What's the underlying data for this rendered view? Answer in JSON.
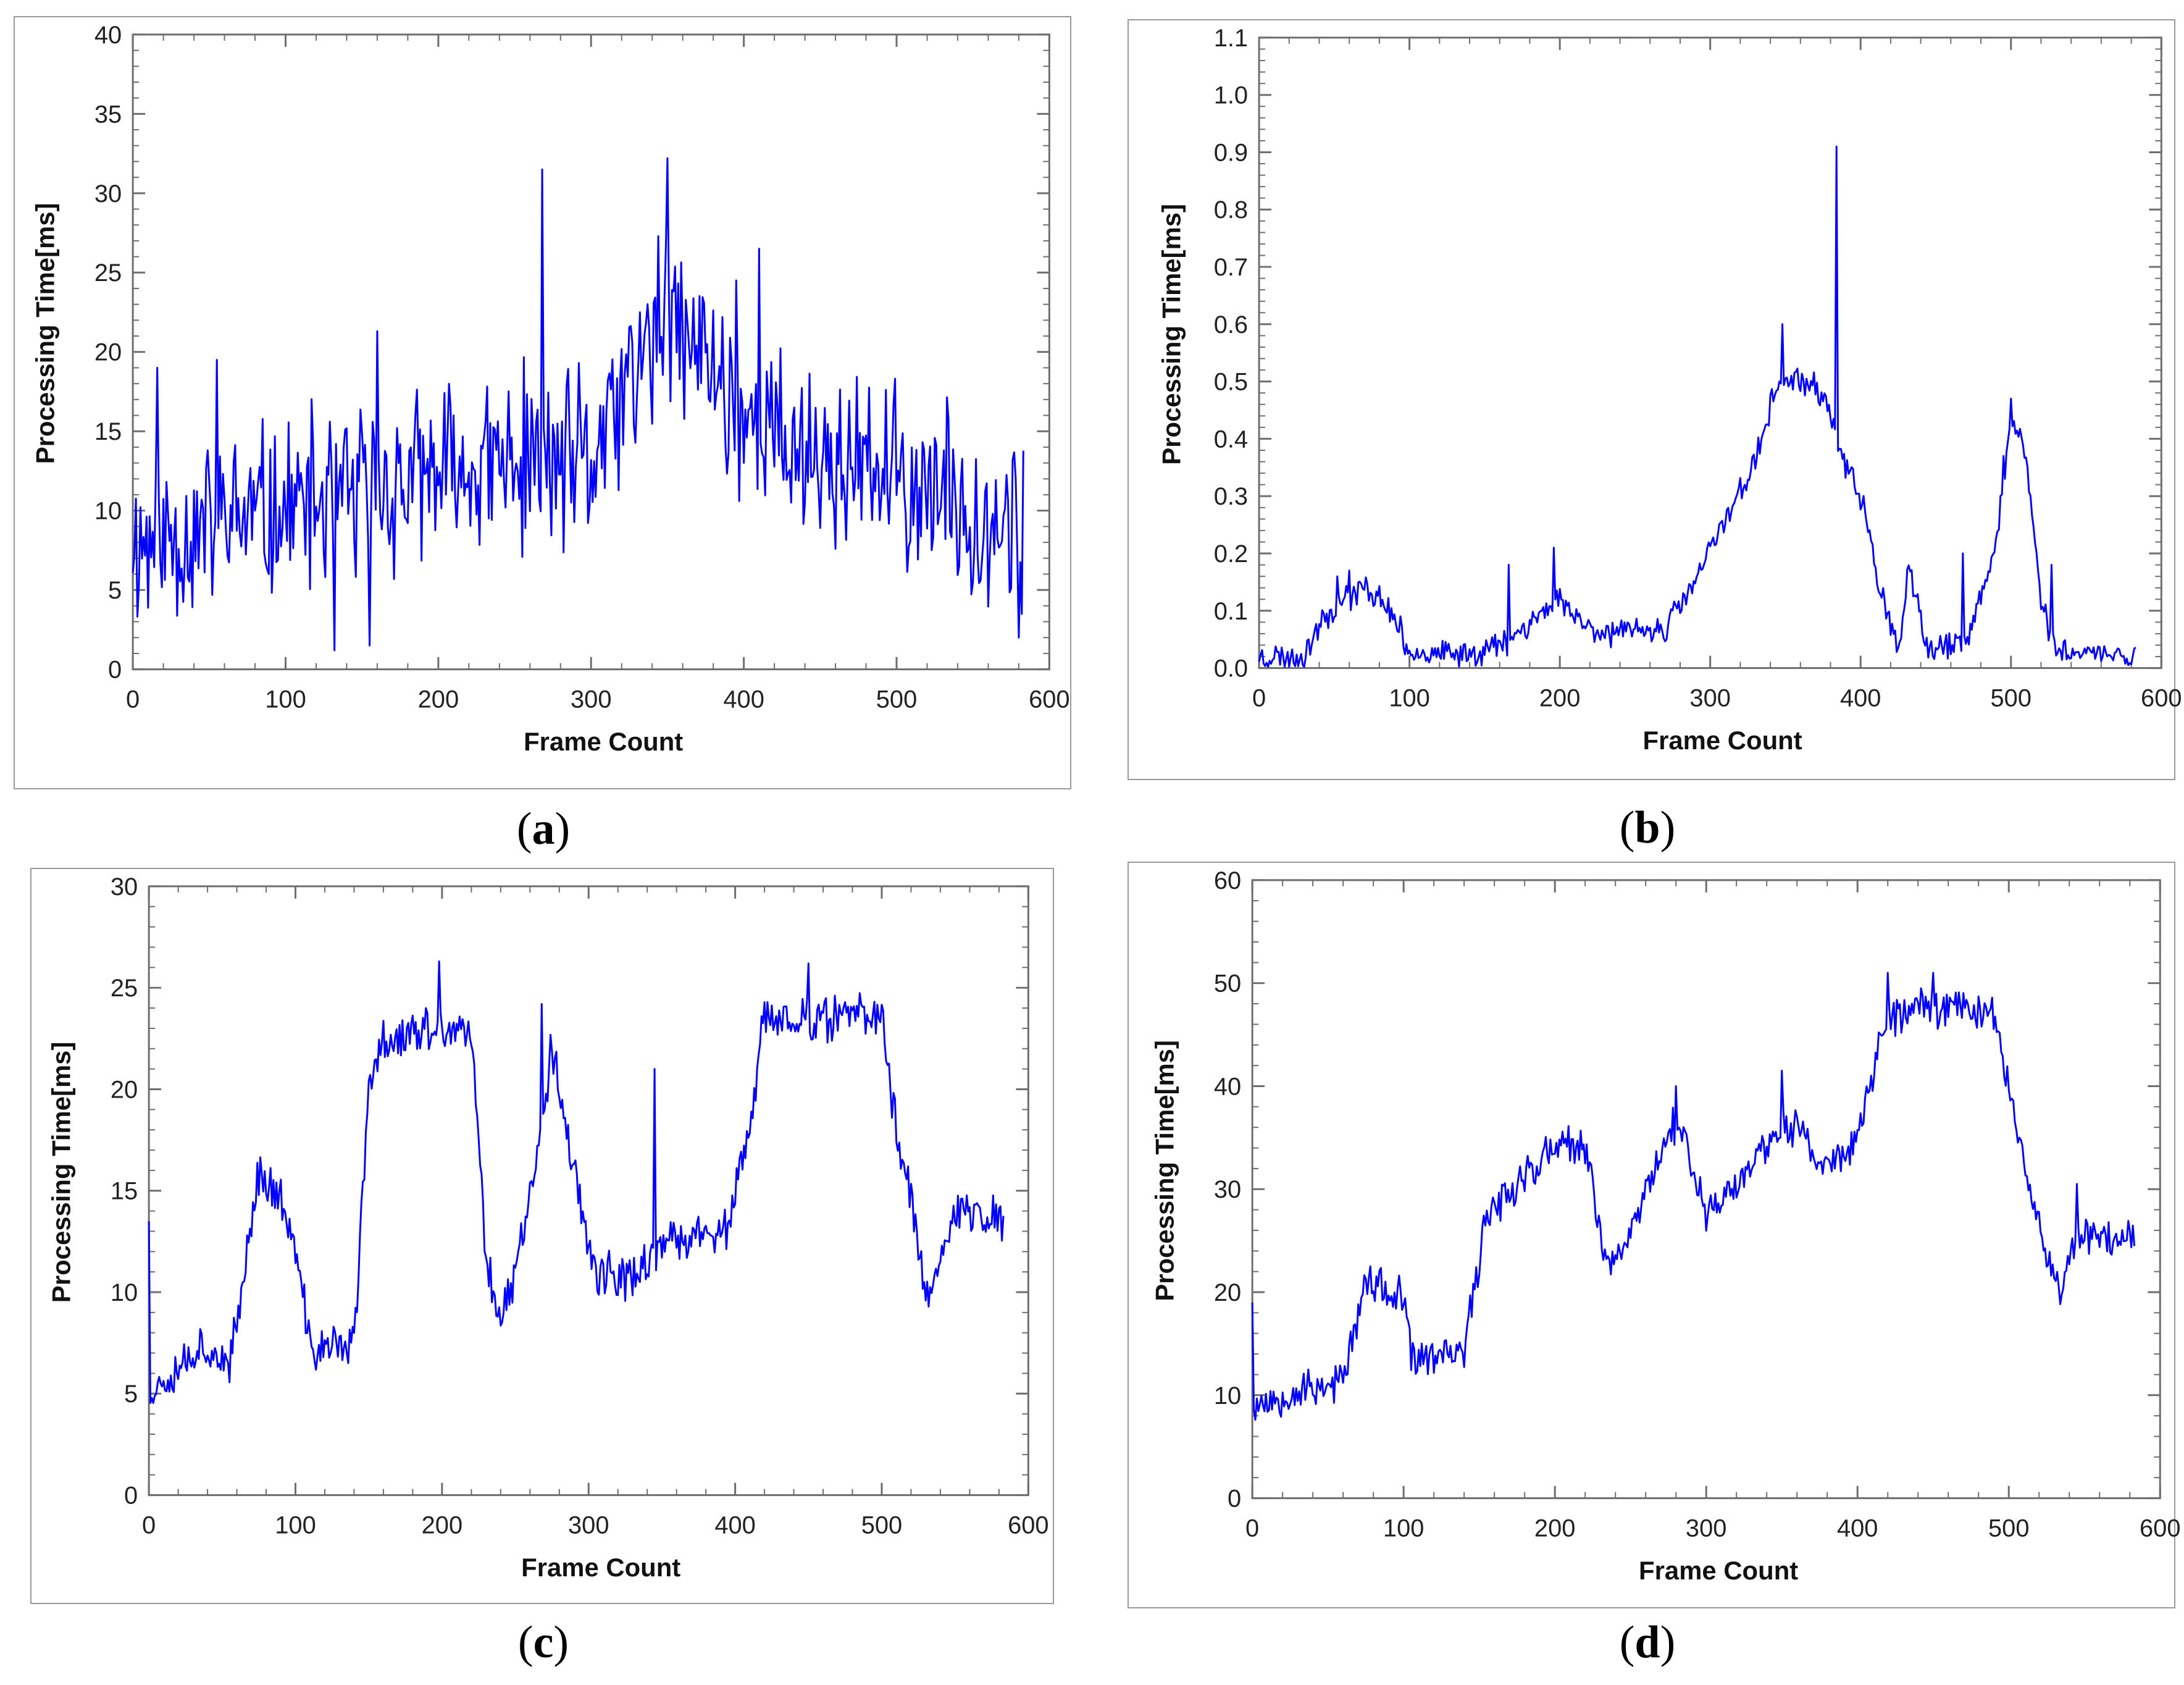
{
  "figure": {
    "line_color": "#0000ff",
    "frame_color": "#6e6e6e"
  },
  "chart_data": [
    {
      "id": "a",
      "type": "line",
      "caption": {
        "open": "(",
        "letter": "a",
        "close": ")"
      },
      "xlabel": "Frame Count",
      "ylabel": "Processing Time[ms]",
      "xlim": [
        0,
        600
      ],
      "ylim": [
        0,
        40
      ],
      "xticks": [
        0,
        100,
        200,
        300,
        400,
        500,
        600
      ],
      "yticks": [
        0,
        5,
        10,
        15,
        20,
        25,
        30,
        35,
        40
      ],
      "ytick_labels": [
        "0",
        "5",
        "10",
        "15",
        "20",
        "25",
        "30",
        "35",
        "40"
      ],
      "x_max_data": 583,
      "profile": [
        [
          0,
          8
        ],
        [
          50,
          9
        ],
        [
          100,
          10
        ],
        [
          150,
          11
        ],
        [
          200,
          12
        ],
        [
          250,
          13
        ],
        [
          300,
          13
        ],
        [
          330,
          19
        ],
        [
          350,
          22
        ],
        [
          380,
          19
        ],
        [
          400,
          16
        ],
        [
          450,
          13
        ],
        [
          500,
          12
        ],
        [
          550,
          10
        ],
        [
          583,
          9
        ]
      ],
      "noise": 7,
      "seed": 11,
      "spikes": [
        [
          16,
          19
        ],
        [
          55,
          19.5
        ],
        [
          132,
          1.2
        ],
        [
          155,
          1.5
        ],
        [
          160,
          21.3
        ],
        [
          268,
          31.5
        ],
        [
          350,
          32.2
        ],
        [
          395,
          24.5
        ],
        [
          410,
          26.5
        ],
        [
          580,
          2
        ],
        [
          584,
          21
        ]
      ],
      "series": [
        {
          "name": "Processing Time",
          "color": "#0000ff"
        }
      ]
    },
    {
      "id": "b",
      "type": "line",
      "caption": {
        "open": "(",
        "letter": "b",
        "close": ")"
      },
      "xlabel": "Frame Count",
      "ylabel": "Processing Time[ms]",
      "xlim": [
        0,
        600
      ],
      "ylim": [
        0,
        1.1
      ],
      "xticks": [
        0,
        100,
        200,
        300,
        400,
        500,
        600
      ],
      "yticks": [
        0,
        0.1,
        0.2,
        0.3,
        0.4,
        0.5,
        0.6,
        0.7,
        0.8,
        0.9,
        1.0,
        1.1
      ],
      "ytick_labels": [
        "0.0",
        "0.1",
        "0.2",
        "0.3",
        "0.4",
        "0.5",
        "0.6",
        "0.7",
        "0.8",
        "0.9",
        "1.0",
        "1.1"
      ],
      "x_max_data": 583,
      "profile": [
        [
          0,
          0.02
        ],
        [
          30,
          0.02
        ],
        [
          40,
          0.08
        ],
        [
          55,
          0.12
        ],
        [
          70,
          0.14
        ],
        [
          85,
          0.11
        ],
        [
          100,
          0.03
        ],
        [
          130,
          0.02
        ],
        [
          160,
          0.04
        ],
        [
          180,
          0.08
        ],
        [
          200,
          0.12
        ],
        [
          220,
          0.07
        ],
        [
          240,
          0.06
        ],
        [
          270,
          0.07
        ],
        [
          290,
          0.15
        ],
        [
          310,
          0.26
        ],
        [
          330,
          0.36
        ],
        [
          345,
          0.5
        ],
        [
          360,
          0.5
        ],
        [
          375,
          0.48
        ],
        [
          390,
          0.35
        ],
        [
          400,
          0.3
        ],
        [
          415,
          0.12
        ],
        [
          425,
          0.02
        ],
        [
          432,
          0.17
        ],
        [
          445,
          0.03
        ],
        [
          470,
          0.04
        ],
        [
          490,
          0.22
        ],
        [
          500,
          0.43
        ],
        [
          510,
          0.37
        ],
        [
          520,
          0.12
        ],
        [
          530,
          0.03
        ],
        [
          583,
          0.02
        ]
      ],
      "noise": 0.03,
      "seed": 23,
      "spikes": [
        [
          52,
          0.16
        ],
        [
          60,
          0.17
        ],
        [
          166,
          0.18
        ],
        [
          196,
          0.21
        ],
        [
          348,
          0.6
        ],
        [
          384,
          0.91
        ],
        [
          468,
          0.2
        ],
        [
          495,
          0.37
        ],
        [
          500,
          0.47
        ],
        [
          527,
          0.18
        ]
      ],
      "series": [
        {
          "name": "Processing Time",
          "color": "#0000ff"
        }
      ]
    },
    {
      "id": "c",
      "type": "line",
      "caption": {
        "open": "(",
        "letter": "c",
        "close": ")"
      },
      "xlabel": "Frame Count",
      "ylabel": "Processing Time[ms]",
      "xlim": [
        0,
        600
      ],
      "ylim": [
        0,
        30
      ],
      "xticks": [
        0,
        100,
        200,
        300,
        400,
        500,
        600
      ],
      "yticks": [
        0,
        5,
        10,
        15,
        20,
        25,
        30
      ],
      "ytick_labels": [
        "0",
        "5",
        "10",
        "15",
        "20",
        "25",
        "30"
      ],
      "x_max_data": 583,
      "profile": [
        [
          0,
          5
        ],
        [
          20,
          6.5
        ],
        [
          40,
          7.5
        ],
        [
          55,
          6
        ],
        [
          65,
          11
        ],
        [
          75,
          16
        ],
        [
          90,
          14.5
        ],
        [
          100,
          12
        ],
        [
          110,
          7.2
        ],
        [
          140,
          7.5
        ],
        [
          150,
          20
        ],
        [
          160,
          22.5
        ],
        [
          200,
          23
        ],
        [
          220,
          22.5
        ],
        [
          230,
          12
        ],
        [
          240,
          8.5
        ],
        [
          250,
          11
        ],
        [
          265,
          17
        ],
        [
          275,
          22
        ],
        [
          290,
          16
        ],
        [
          305,
          11
        ],
        [
          325,
          10.5
        ],
        [
          345,
          12
        ],
        [
          380,
          13
        ],
        [
          395,
          13
        ],
        [
          410,
          18
        ],
        [
          420,
          23.5
        ],
        [
          450,
          23.5
        ],
        [
          500,
          23.5
        ],
        [
          510,
          18
        ],
        [
          520,
          15
        ],
        [
          530,
          9.5
        ],
        [
          540,
          12
        ],
        [
          550,
          14
        ],
        [
          583,
          13.5
        ]
      ],
      "noise": 1.4,
      "seed": 37,
      "spikes": [
        [
          0,
          13.5
        ],
        [
          198,
          26.3
        ],
        [
          268,
          24.2
        ],
        [
          345,
          21
        ],
        [
          450,
          26.2
        ]
      ],
      "series": [
        {
          "name": "Processing Time",
          "color": "#0000ff"
        }
      ]
    },
    {
      "id": "d",
      "type": "line",
      "caption": {
        "open": "(",
        "letter": "d",
        "close": ")"
      },
      "xlabel": "Frame Count",
      "ylabel": "Processing Time[ms]",
      "xlim": [
        0,
        600
      ],
      "ylim": [
        0,
        60
      ],
      "xticks": [
        0,
        100,
        200,
        300,
        400,
        500,
        600
      ],
      "yticks": [
        0,
        10,
        20,
        30,
        40,
        50,
        60
      ],
      "ytick_labels": [
        "0",
        "10",
        "20",
        "30",
        "40",
        "50",
        "60"
      ],
      "x_max_data": 583,
      "profile": [
        [
          0,
          9
        ],
        [
          30,
          10.5
        ],
        [
          60,
          11.5
        ],
        [
          75,
          21
        ],
        [
          100,
          19
        ],
        [
          105,
          13.5
        ],
        [
          140,
          14
        ],
        [
          155,
          28
        ],
        [
          200,
          34
        ],
        [
          220,
          34
        ],
        [
          235,
          22.5
        ],
        [
          245,
          24
        ],
        [
          265,
          32
        ],
        [
          280,
          37
        ],
        [
          300,
          28
        ],
        [
          320,
          30
        ],
        [
          340,
          35
        ],
        [
          360,
          36
        ],
        [
          380,
          32
        ],
        [
          400,
          35
        ],
        [
          420,
          47
        ],
        [
          460,
          48
        ],
        [
          490,
          47
        ],
        [
          510,
          33
        ],
        [
          525,
          24
        ],
        [
          535,
          20
        ],
        [
          545,
          26
        ],
        [
          583,
          25
        ]
      ],
      "noise": 2.5,
      "seed": 53,
      "spikes": [
        [
          0,
          19
        ],
        [
          280,
          40
        ],
        [
          350,
          41.5
        ],
        [
          420,
          51
        ],
        [
          450,
          51
        ],
        [
          545,
          30.5
        ]
      ],
      "series": [
        {
          "name": "Processing Time",
          "color": "#0000ff"
        }
      ]
    }
  ]
}
